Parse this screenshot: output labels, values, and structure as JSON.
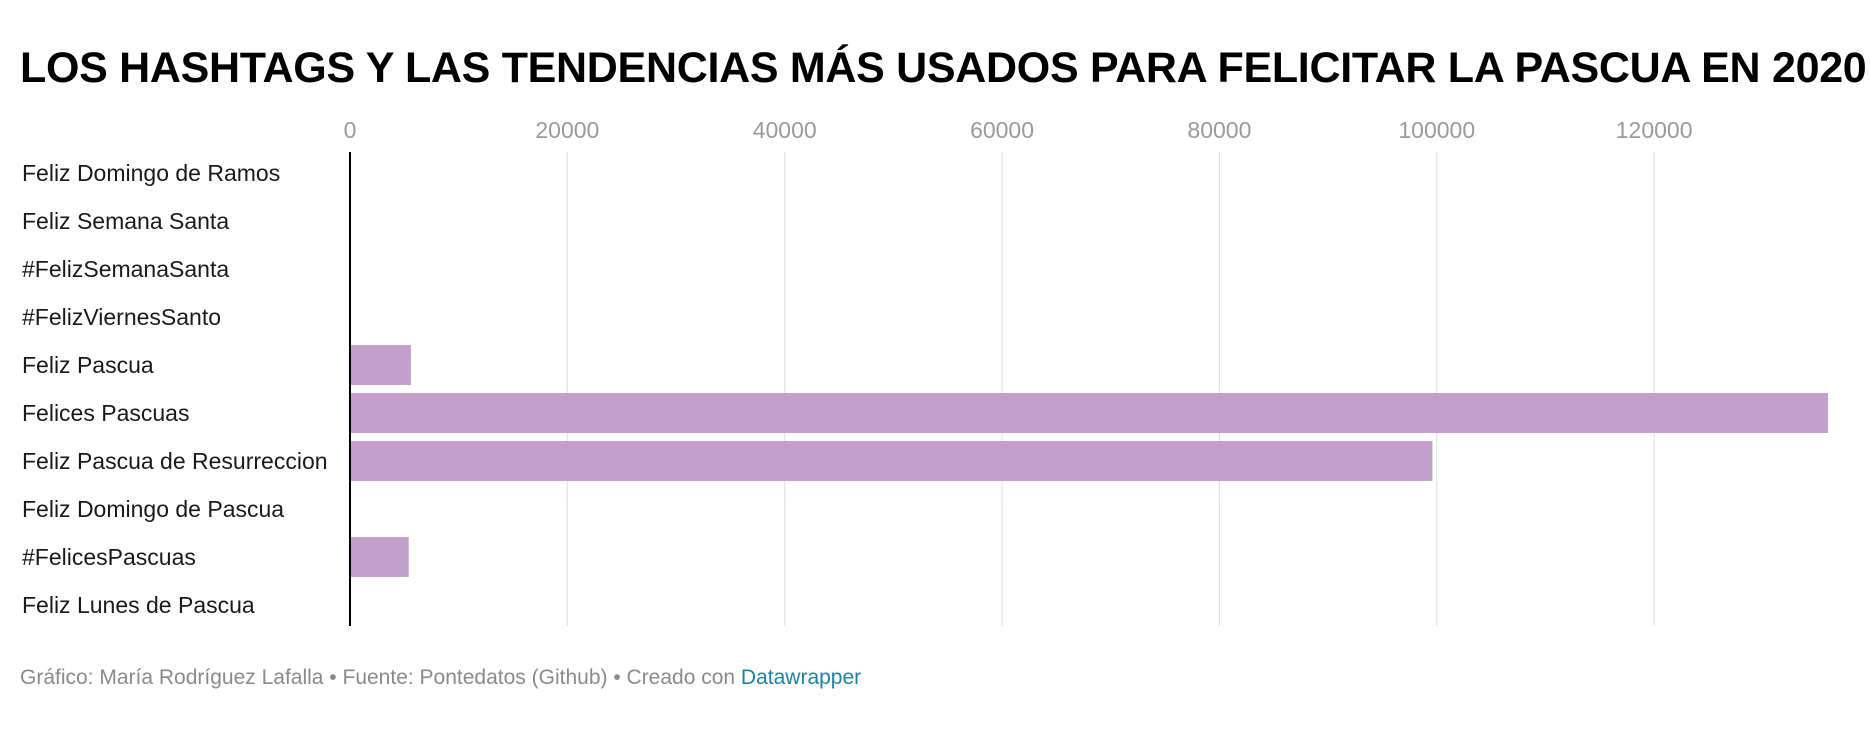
{
  "chart_data": {
    "type": "bar",
    "orientation": "horizontal",
    "title": "LOS HASHTAGS Y LAS TENDENCIAS MÁS USADOS PARA FELICITAR LA PASCUA EN 2020",
    "categories": [
      "Feliz Domingo de Ramos",
      "Feliz Semana Santa",
      "#FelizSemanaSanta",
      "#FelizViernesSanto",
      "Feliz Pascua",
      "Felices Pascuas",
      "Feliz Pascua de Resurreccion",
      "Feliz Domingo de Pascua",
      "#FelicesPascuas",
      "Feliz Lunes de Pascua"
    ],
    "values": [
      0,
      0,
      0,
      0,
      5600,
      136000,
      99600,
      0,
      5400,
      0
    ],
    "xticks": [
      "0",
      "20000",
      "40000",
      "60000",
      "80000",
      "100000",
      "120000"
    ],
    "xlim": [
      0,
      136000
    ],
    "xlabel": "",
    "ylabel": "",
    "grid": true,
    "legend": "none",
    "bar_color": "#c39fcb"
  },
  "footer": {
    "credit": "Gráfico: María Rodríguez Lafalla • Fuente: Pontedatos (Github) • Creado con ",
    "link_label": "Datawrapper"
  },
  "colors": {
    "bar": "#c39fcb",
    "gridline": "#e3e3e3",
    "axis": "#000000",
    "tick_text": "#9a9a9a",
    "link": "#1d81a2"
  }
}
